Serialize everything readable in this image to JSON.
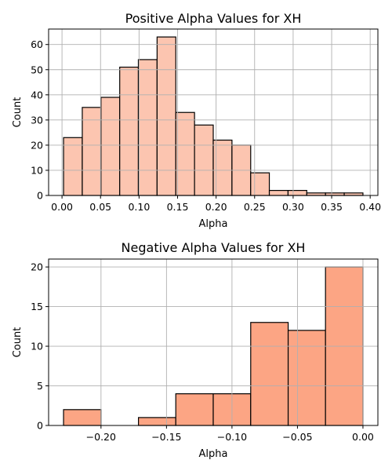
{
  "chart_data": [
    {
      "type": "bar",
      "title": "Positive Alpha Values for XH",
      "xlabel": "Alpha",
      "ylabel": "Count",
      "bin_edges": [
        0.002,
        0.0263,
        0.0506,
        0.0749,
        0.0991,
        0.1234,
        0.1477,
        0.172,
        0.1963,
        0.2206,
        0.2449,
        0.2691,
        0.2934,
        0.3177,
        0.342,
        0.3663,
        0.3906
      ],
      "values": [
        23,
        35,
        39,
        51,
        54,
        63,
        33,
        28,
        22,
        20,
        9,
        2,
        2,
        1,
        1,
        1
      ],
      "xlim": [
        -0.0174,
        0.41
      ],
      "ylim": [
        0,
        66.15
      ],
      "xticks": [
        0.0,
        0.05,
        0.1,
        0.15,
        0.2,
        0.25,
        0.3,
        0.35,
        0.4
      ],
      "xtick_labels": [
        "0.00",
        "0.05",
        "0.10",
        "0.15",
        "0.20",
        "0.25",
        "0.30",
        "0.35",
        "0.40"
      ],
      "yticks": [
        0,
        10,
        20,
        30,
        40,
        50,
        60
      ],
      "ytick_labels": [
        "0",
        "10",
        "20",
        "30",
        "40",
        "50",
        "60"
      ],
      "grid": true,
      "bar_color": "#fcc5b0",
      "edge_color": "#000000"
    },
    {
      "type": "bar",
      "title": "Negative Alpha Values for XH",
      "xlabel": "Alpha",
      "ylabel": "Count",
      "bin_edges": [
        -0.2286,
        -0.2,
        -0.1714,
        -0.1429,
        -0.1143,
        -0.0857,
        -0.0571,
        -0.0286,
        0.0
      ],
      "values": [
        2,
        0,
        1,
        4,
        4,
        13,
        12,
        20
      ],
      "xlim": [
        -0.24,
        0.0114
      ],
      "ylim": [
        0,
        21
      ],
      "xticks": [
        -0.2,
        -0.15,
        -0.1,
        -0.05,
        0.0
      ],
      "xtick_labels": [
        "−0.20",
        "−0.15",
        "−0.10",
        "−0.05",
        "0.00"
      ],
      "yticks": [
        0,
        5,
        10,
        15,
        20
      ],
      "ytick_labels": [
        "0",
        "5",
        "10",
        "15",
        "20"
      ],
      "grid": true,
      "bar_color": "#fca584",
      "edge_color": "#000000"
    }
  ]
}
